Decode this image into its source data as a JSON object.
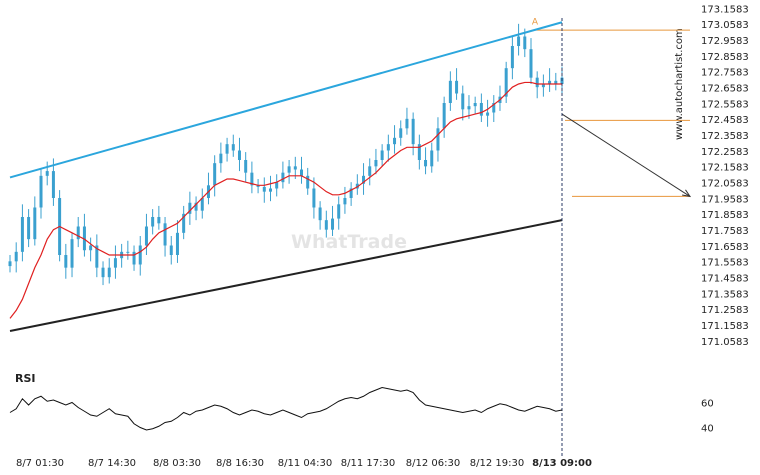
{
  "brand": "www.autochartist.com",
  "watermark": "WhatTrade",
  "colors": {
    "candle": "#3aa0cf",
    "ma": "#e02020",
    "upper_channel": "#2ba6dd",
    "lower_channel": "#222222",
    "level": "#e8963c",
    "forecast_arrow": "#333333",
    "rsi": "#111111",
    "vertical_marker": "#2a3a66"
  },
  "chart_data": {
    "type": "candlestick",
    "title": "",
    "xlabel": "",
    "ylabel": "",
    "ylim": [
      171.0,
      173.16
    ],
    "y_ticks": [
      "173.1583",
      "173.0583",
      "172.9583",
      "172.8583",
      "172.7583",
      "172.6583",
      "172.5583",
      "172.4583",
      "172.3583",
      "172.2583",
      "172.1583",
      "172.0583",
      "171.9583",
      "171.8583",
      "171.7583",
      "171.6583",
      "171.5583",
      "171.4583",
      "171.3583",
      "171.2583",
      "171.1583",
      "171.0583"
    ],
    "x_ticks": [
      "8/7 01:30",
      "8/7 14:30",
      "8/8 03:30",
      "8/8 16:30",
      "8/11 04:30",
      "8/11 17:30",
      "8/12 06:30",
      "8/12 19:30",
      "8/13 09:00"
    ],
    "highlighted_x_tick": "8/13 09:00",
    "candles": [
      171.56,
      171.62,
      171.84,
      171.7,
      171.9,
      172.1,
      172.13,
      171.96,
      171.6,
      171.52,
      171.7,
      171.78,
      171.63,
      171.66,
      171.52,
      171.46,
      171.52,
      171.58,
      171.62,
      171.62,
      171.54,
      171.66,
      171.78,
      171.84,
      171.8,
      171.66,
      171.6,
      171.74,
      171.86,
      171.93,
      171.88,
      171.96,
      172.04,
      172.18,
      172.24,
      172.3,
      172.26,
      172.2,
      172.12,
      172.04,
      172.03,
      172.0,
      172.02,
      172.06,
      172.12,
      172.16,
      172.14,
      172.1,
      172.02,
      171.9,
      171.82,
      171.76,
      171.83,
      171.92,
      171.96,
      172.02,
      172.05,
      172.1,
      172.16,
      172.2,
      172.26,
      172.3,
      172.34,
      172.4,
      172.46,
      172.3,
      172.2,
      172.16,
      172.26,
      172.4,
      172.56,
      172.7,
      172.62,
      172.52,
      172.54,
      172.56,
      172.48,
      172.5,
      172.56,
      172.6,
      172.78,
      172.92,
      172.98,
      172.9,
      172.72,
      172.66,
      172.68,
      172.7,
      172.68,
      172.72
    ],
    "series": [
      {
        "name": "MA",
        "values": [
          171.2,
          171.25,
          171.32,
          171.42,
          171.52,
          171.6,
          171.7,
          171.76,
          171.78,
          171.76,
          171.74,
          171.72,
          171.7,
          171.67,
          171.64,
          171.62,
          171.6,
          171.6,
          171.6,
          171.6,
          171.6,
          171.62,
          171.65,
          171.7,
          171.74,
          171.76,
          171.78,
          171.8,
          171.84,
          171.88,
          171.92,
          171.96,
          172.0,
          172.04,
          172.06,
          172.08,
          172.08,
          172.07,
          172.06,
          172.05,
          172.04,
          172.04,
          172.05,
          172.06,
          172.08,
          172.1,
          172.1,
          172.1,
          172.08,
          172.06,
          172.03,
          172.0,
          171.98,
          171.98,
          171.99,
          172.01,
          172.03,
          172.06,
          172.09,
          172.12,
          172.16,
          172.2,
          172.23,
          172.26,
          172.28,
          172.28,
          172.28,
          172.3,
          172.32,
          172.36,
          172.4,
          172.44,
          172.46,
          172.47,
          172.48,
          172.49,
          172.5,
          172.52,
          172.55,
          172.58,
          172.62,
          172.66,
          172.68,
          172.69,
          172.69,
          172.68,
          172.68,
          172.68,
          172.68,
          172.68
        ]
      },
      {
        "name": "RSI",
        "values": [
          52,
          55,
          63,
          58,
          63,
          65,
          61,
          62,
          60,
          58,
          60,
          56,
          53,
          50,
          49,
          52,
          55,
          51,
          50,
          49,
          43,
          40,
          38,
          39,
          41,
          44,
          45,
          48,
          52,
          50,
          53,
          54,
          56,
          58,
          57,
          55,
          52,
          50,
          52,
          54,
          53,
          51,
          50,
          52,
          54,
          52,
          50,
          48,
          51,
          52,
          53,
          55,
          58,
          61,
          63,
          64,
          63,
          65,
          68,
          70,
          72,
          71,
          70,
          69,
          70,
          68,
          62,
          58,
          57,
          56,
          55,
          54,
          53,
          52,
          53,
          54,
          52,
          55,
          57,
          59,
          58,
          56,
          54,
          53,
          55,
          57,
          56,
          55,
          53,
          54
        ]
      }
    ],
    "upper_channel": {
      "start": {
        "index": 0,
        "value": 172.09
      },
      "end": {
        "index": 89,
        "value": 173.07
      }
    },
    "lower_channel": {
      "start": {
        "index": 0,
        "value": 171.12
      },
      "end": {
        "index": 89,
        "value": 171.82
      }
    },
    "levels": [
      173.02,
      172.45,
      171.97
    ],
    "pattern_label": "A",
    "forecast": {
      "from": {
        "index": 89,
        "value": 172.49
      },
      "to": {
        "index": 108,
        "value": 171.97
      }
    },
    "rsi_levels": [
      60,
      40
    ]
  }
}
